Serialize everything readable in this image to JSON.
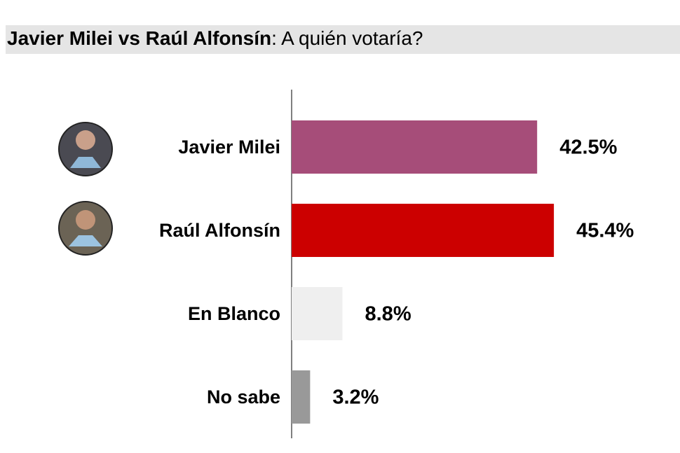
{
  "chart_data": {
    "type": "bar",
    "orientation": "horizontal",
    "title": "Javier Milei vs Raúl Alfonsín",
    "subtitle": ": A quién votaría?",
    "categories": [
      "Javier Milei",
      "Raúl Alfonsín",
      "En Blanco",
      "No sabe"
    ],
    "values": [
      42.5,
      45.4,
      8.8,
      3.2
    ],
    "value_labels": [
      "42.5%",
      "45.4%",
      "8.8%",
      "3.2%"
    ],
    "colors": [
      "#a64d79",
      "#cc0000",
      "#efefef",
      "#999999"
    ]
  }
}
